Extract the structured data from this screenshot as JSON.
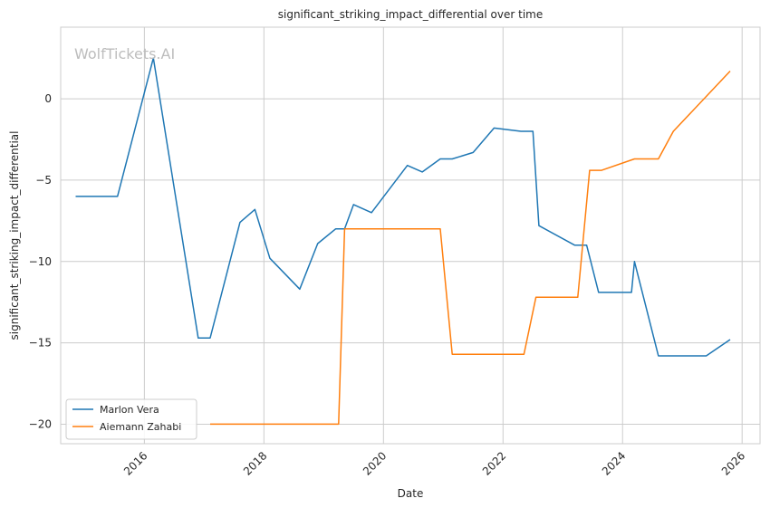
{
  "chart_data": {
    "type": "line",
    "title": "significant_striking_impact_differential over time",
    "xlabel": "Date",
    "ylabel": "significant_striking_impact_differential",
    "watermark": "WolfTickets.AI",
    "xlim": [
      2014.6,
      2026.3
    ],
    "ylim": [
      -21.2,
      4.4
    ],
    "x_ticks": [
      2016,
      2018,
      2020,
      2022,
      2024,
      2026
    ],
    "y_ticks": [
      0,
      -5,
      -10,
      -15,
      -20
    ],
    "x_tick_labels": [
      "2016",
      "2018",
      "2020",
      "2022",
      "2024",
      "2026"
    ],
    "y_tick_labels": [
      "0",
      "−5",
      "−10",
      "−15",
      "−20"
    ],
    "grid": true,
    "legend_position": "lower-left",
    "series": [
      {
        "name": "Marlon Vera",
        "color": "#1f77b4",
        "points": [
          [
            2014.85,
            -6.0
          ],
          [
            2015.55,
            -6.0
          ],
          [
            2016.15,
            2.5
          ],
          [
            2016.9,
            -14.7
          ],
          [
            2017.1,
            -14.7
          ],
          [
            2017.6,
            -7.6
          ],
          [
            2017.85,
            -6.8
          ],
          [
            2018.1,
            -9.8
          ],
          [
            2018.6,
            -11.7
          ],
          [
            2018.9,
            -8.9
          ],
          [
            2019.2,
            -8.0
          ],
          [
            2019.35,
            -8.0
          ],
          [
            2019.5,
            -6.5
          ],
          [
            2019.8,
            -7.0
          ],
          [
            2020.4,
            -4.1
          ],
          [
            2020.65,
            -4.5
          ],
          [
            2020.95,
            -3.7
          ],
          [
            2021.15,
            -3.7
          ],
          [
            2021.5,
            -3.3
          ],
          [
            2021.85,
            -1.8
          ],
          [
            2022.3,
            -2.0
          ],
          [
            2022.5,
            -2.0
          ],
          [
            2022.6,
            -7.8
          ],
          [
            2023.2,
            -9.0
          ],
          [
            2023.4,
            -9.0
          ],
          [
            2023.6,
            -11.9
          ],
          [
            2024.15,
            -11.9
          ],
          [
            2024.2,
            -10.0
          ],
          [
            2024.6,
            -15.8
          ],
          [
            2025.4,
            -15.8
          ],
          [
            2025.8,
            -14.8
          ]
        ]
      },
      {
        "name": "Aiemann Zahabi",
        "color": "#ff7f0e",
        "points": [
          [
            2017.1,
            -20.0
          ],
          [
            2019.25,
            -20.0
          ],
          [
            2019.35,
            -8.0
          ],
          [
            2020.95,
            -8.0
          ],
          [
            2021.15,
            -15.7
          ],
          [
            2022.35,
            -15.7
          ],
          [
            2022.55,
            -12.2
          ],
          [
            2023.25,
            -12.2
          ],
          [
            2023.45,
            -4.4
          ],
          [
            2023.65,
            -4.4
          ],
          [
            2024.2,
            -3.7
          ],
          [
            2024.6,
            -3.7
          ],
          [
            2024.85,
            -2.0
          ],
          [
            2025.8,
            1.7
          ]
        ]
      }
    ]
  }
}
